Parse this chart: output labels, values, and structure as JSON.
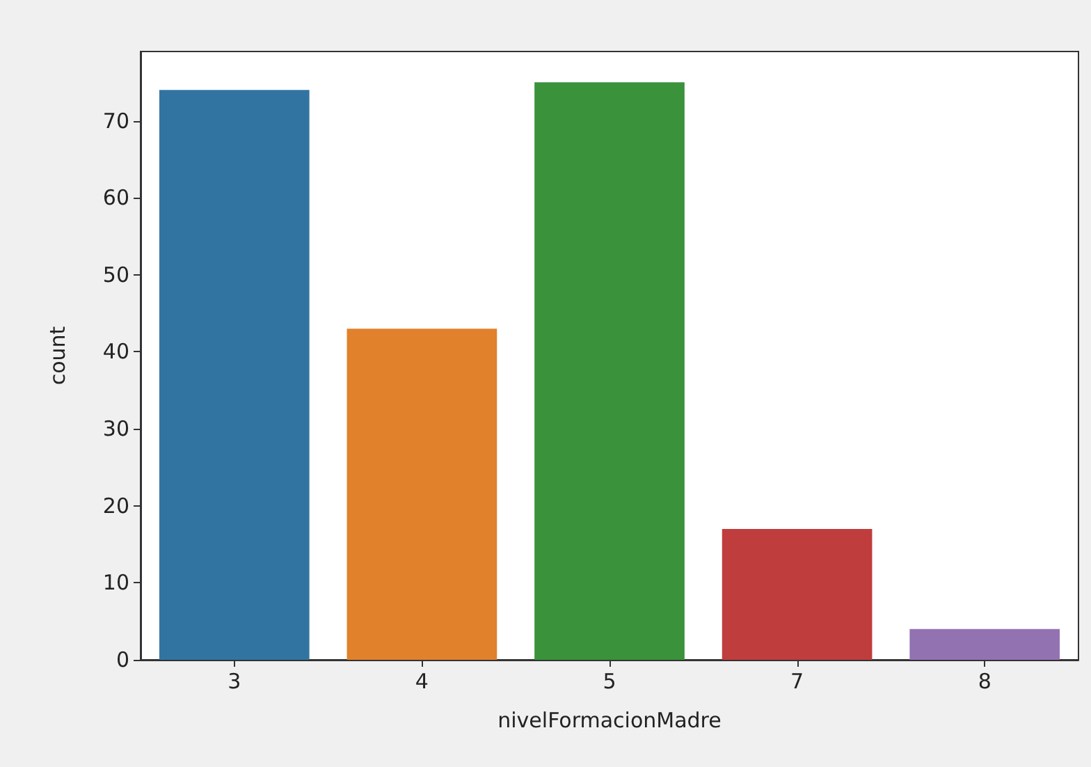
{
  "chart_data": {
    "type": "bar",
    "xlabel": "nivelFormacionMadre",
    "ylabel": "count",
    "categories": [
      "3",
      "4",
      "5",
      "7",
      "8"
    ],
    "values": [
      74,
      43,
      75,
      17,
      4
    ],
    "colors": [
      "#3274a1",
      "#e1812c",
      "#3a923a",
      "#c03d3e",
      "#9372b2"
    ],
    "ylim": [
      0,
      79
    ],
    "yticks": [
      0,
      10,
      20,
      30,
      40,
      50,
      60,
      70
    ],
    "grid": false
  }
}
